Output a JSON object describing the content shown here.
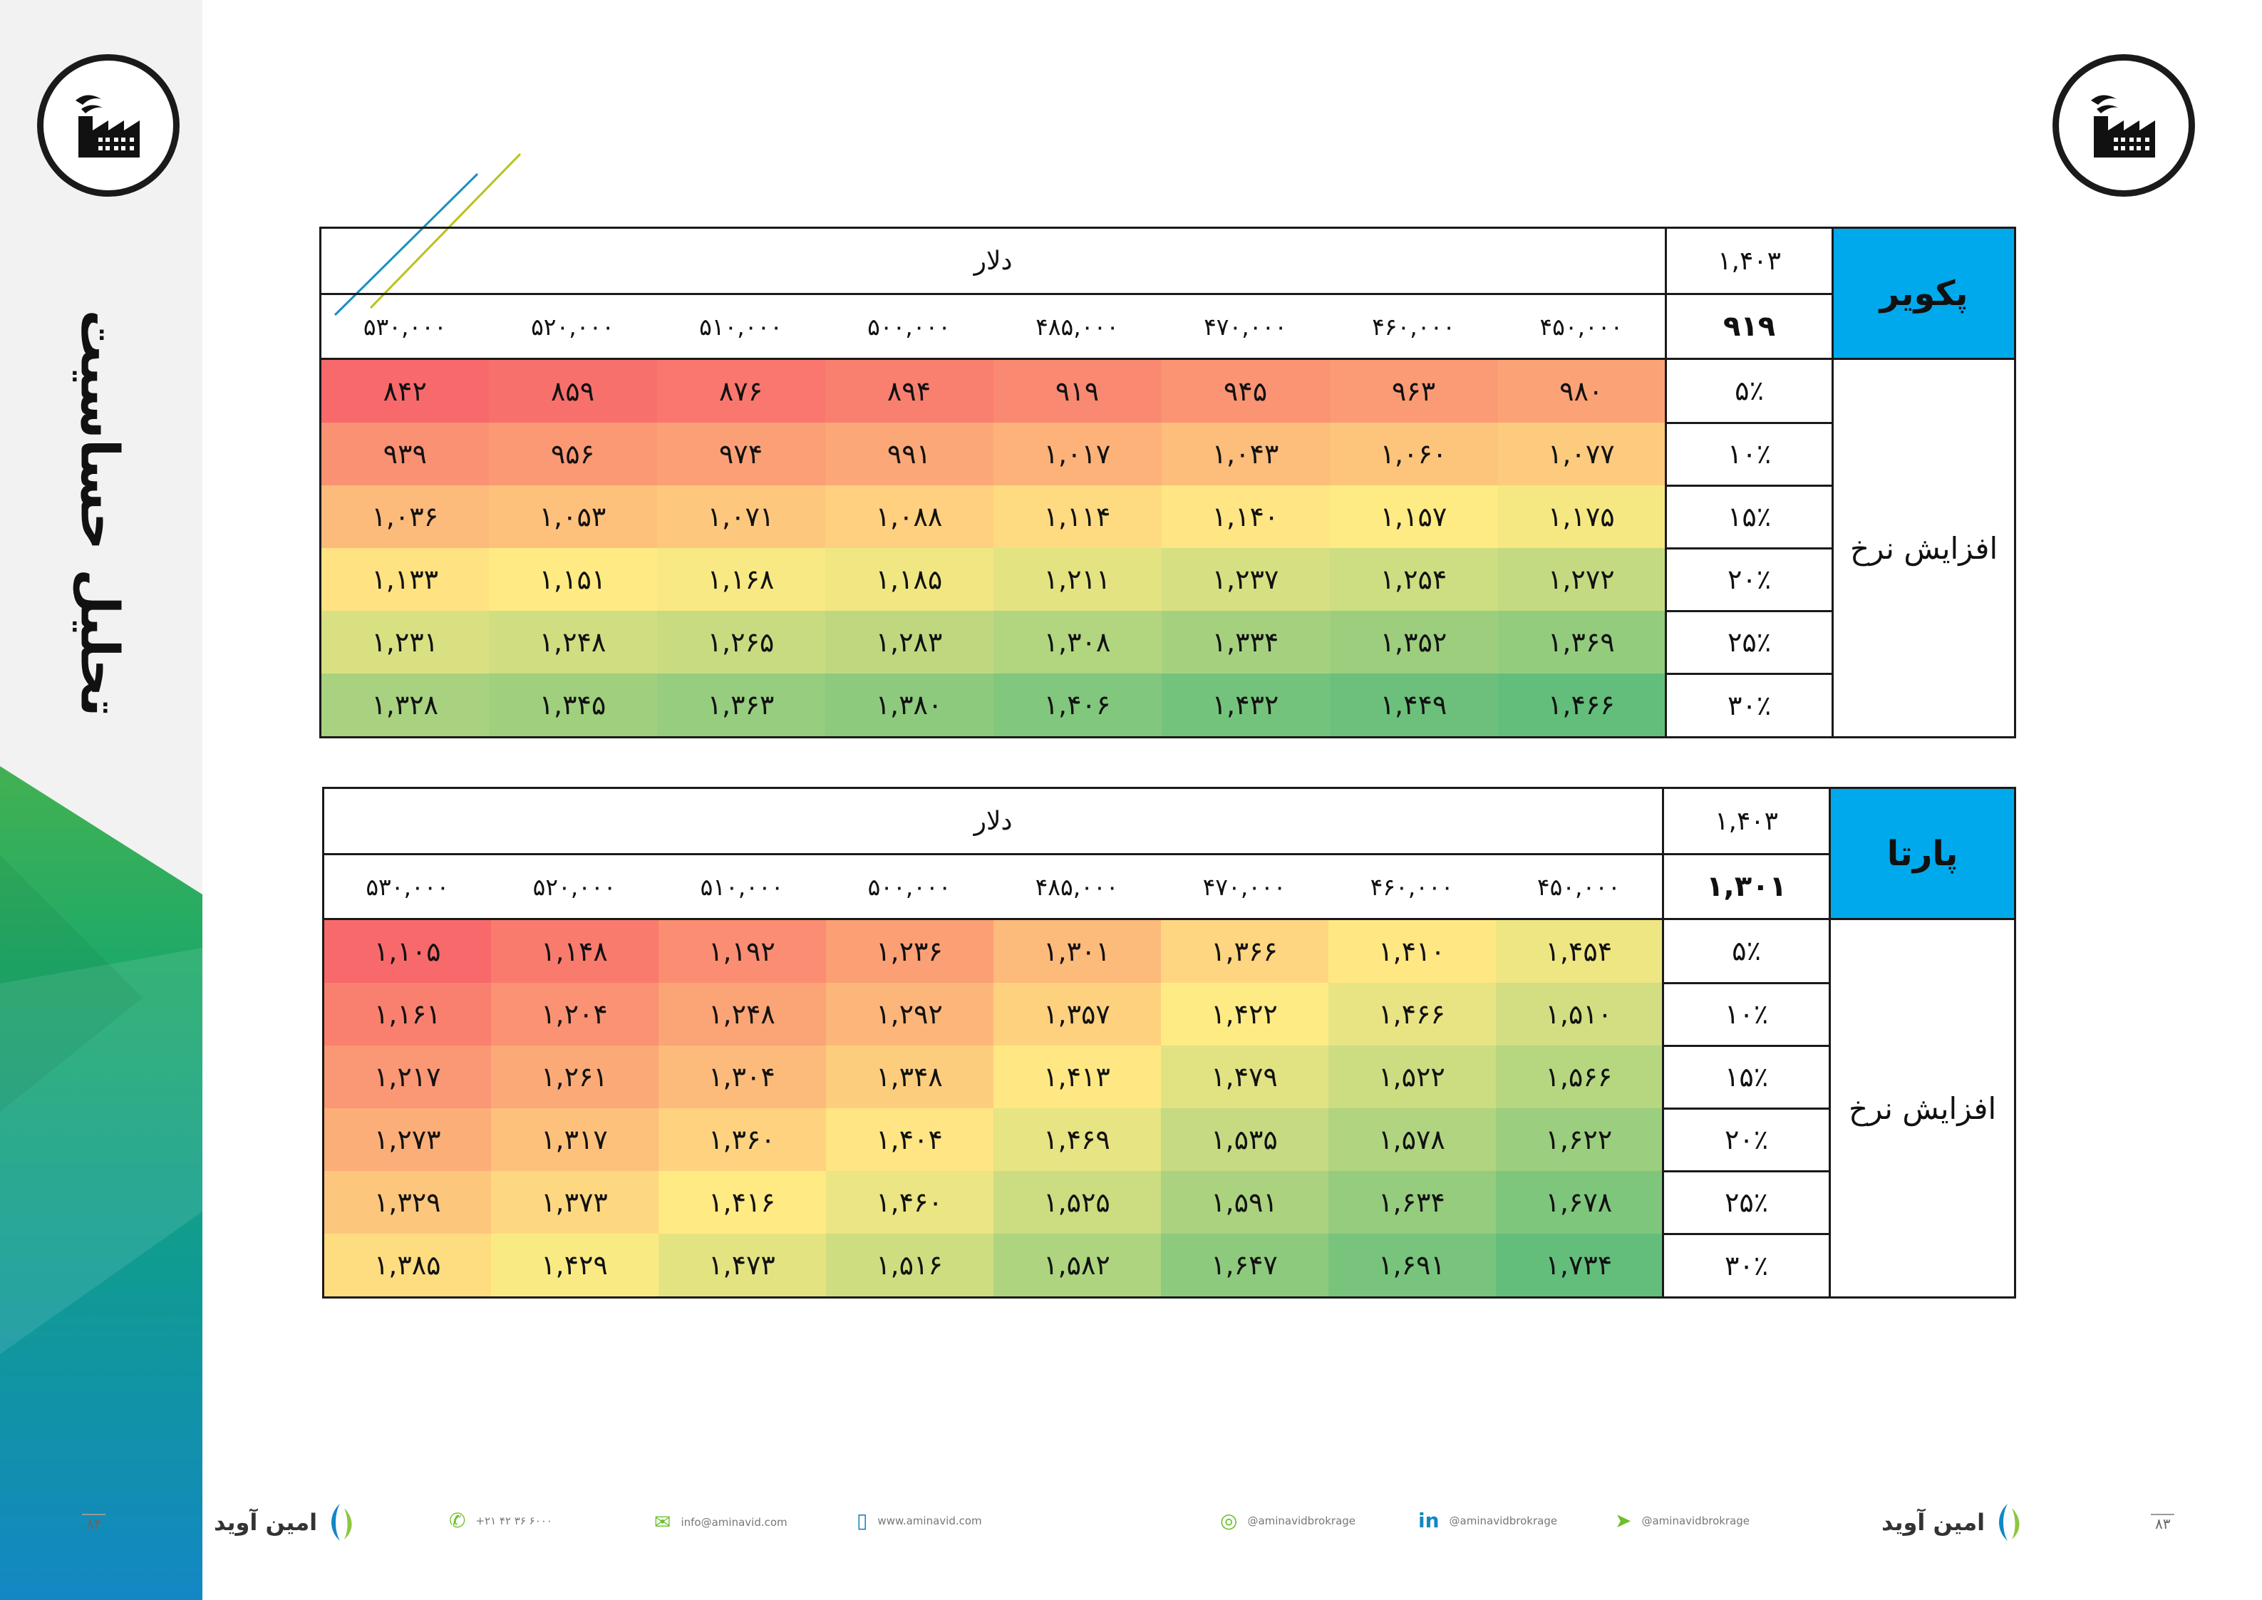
{
  "sidebar": {
    "title": "تحلیل حساسیت",
    "page_number": "۸۴"
  },
  "right_page_number": "۸۳",
  "logo_icon": "factory-icon",
  "tables": [
    {
      "company": "پکویر",
      "unit_header": "دلار",
      "base_rate": "۱,۴۰۳",
      "base_price": "۹۱۹",
      "row_label": "افزایش نرخ",
      "columns": [
        "۵۳۰,۰۰۰",
        "۵۲۰,۰۰۰",
        "۵۱۰,۰۰۰",
        "۵۰۰,۰۰۰",
        "۴۸۵,۰۰۰",
        "۴۷۰,۰۰۰",
        "۴۶۰,۰۰۰",
        "۴۵۰,۰۰۰"
      ],
      "rows": [
        {
          "pct": "۵٪",
          "values": [
            "۸۴۲",
            "۸۵۹",
            "۸۷۶",
            "۸۹۴",
            "۹۱۹",
            "۹۴۵",
            "۹۶۳",
            "۹۸۰"
          ]
        },
        {
          "pct": "۱۰٪",
          "values": [
            "۹۳۹",
            "۹۵۶",
            "۹۷۴",
            "۹۹۱",
            "۱,۰۱۷",
            "۱,۰۴۳",
            "۱,۰۶۰",
            "۱,۰۷۷"
          ]
        },
        {
          "pct": "۱۵٪",
          "values": [
            "۱,۰۳۶",
            "۱,۰۵۳",
            "۱,۰۷۱",
            "۱,۰۸۸",
            "۱,۱۱۴",
            "۱,۱۴۰",
            "۱,۱۵۷",
            "۱,۱۷۵"
          ]
        },
        {
          "pct": "۲۰٪",
          "values": [
            "۱,۱۳۳",
            "۱,۱۵۱",
            "۱,۱۶۸",
            "۱,۱۸۵",
            "۱,۲۱۱",
            "۱,۲۳۷",
            "۱,۲۵۴",
            "۱,۲۷۲"
          ]
        },
        {
          "pct": "۲۵٪",
          "values": [
            "۱,۲۳۱",
            "۱,۲۴۸",
            "۱,۲۶۵",
            "۱,۲۸۳",
            "۱,۳۰۸",
            "۱,۳۳۴",
            "۱,۳۵۲",
            "۱,۳۶۹"
          ]
        },
        {
          "pct": "۳۰٪",
          "values": [
            "۱,۳۲۸",
            "۱,۳۴۵",
            "۱,۳۶۳",
            "۱,۳۸۰",
            "۱,۴۰۶",
            "۱,۴۳۲",
            "۱,۴۴۹",
            "۱,۴۶۶"
          ]
        }
      ]
    },
    {
      "company": "پارتا",
      "unit_header": "دلار",
      "base_rate": "۱,۴۰۳",
      "base_price": "۱,۳۰۱",
      "row_label": "افزایش نرخ",
      "columns": [
        "۵۳۰,۰۰۰",
        "۵۲۰,۰۰۰",
        "۵۱۰,۰۰۰",
        "۵۰۰,۰۰۰",
        "۴۸۵,۰۰۰",
        "۴۷۰,۰۰۰",
        "۴۶۰,۰۰۰",
        "۴۵۰,۰۰۰"
      ],
      "rows": [
        {
          "pct": "۵٪",
          "values": [
            "۱,۱۰۵",
            "۱,۱۴۸",
            "۱,۱۹۲",
            "۱,۲۳۶",
            "۱,۳۰۱",
            "۱,۳۶۶",
            "۱,۴۱۰",
            "۱,۴۵۴"
          ]
        },
        {
          "pct": "۱۰٪",
          "values": [
            "۱,۱۶۱",
            "۱,۲۰۴",
            "۱,۲۴۸",
            "۱,۲۹۲",
            "۱,۳۵۷",
            "۱,۴۲۲",
            "۱,۴۶۶",
            "۱,۵۱۰"
          ]
        },
        {
          "pct": "۱۵٪",
          "values": [
            "۱,۲۱۷",
            "۱,۲۶۱",
            "۱,۳۰۴",
            "۱,۳۴۸",
            "۱,۴۱۳",
            "۱,۴۷۹",
            "۱,۵۲۲",
            "۱,۵۶۶"
          ]
        },
        {
          "pct": "۲۰٪",
          "values": [
            "۱,۲۷۳",
            "۱,۳۱۷",
            "۱,۳۶۰",
            "۱,۴۰۴",
            "۱,۴۶۹",
            "۱,۵۳۵",
            "۱,۵۷۸",
            "۱,۶۲۲"
          ]
        },
        {
          "pct": "۲۵٪",
          "values": [
            "۱,۳۲۹",
            "۱,۳۷۳",
            "۱,۴۱۶",
            "۱,۴۶۰",
            "۱,۵۲۵",
            "۱,۵۹۱",
            "۱,۶۳۴",
            "۱,۶۷۸"
          ]
        },
        {
          "pct": "۳۰٪",
          "values": [
            "۱,۳۸۵",
            "۱,۴۲۹",
            "۱,۴۷۳",
            "۱,۵۱۶",
            "۱,۵۸۲",
            "۱,۶۴۷",
            "۱,۶۹۱",
            "۱,۷۳۴"
          ]
        }
      ]
    }
  ],
  "colors": {
    "header_blue": "#00a9ec",
    "heat_low": "#f8696b",
    "heat_mid": "#ffeb84",
    "heat_high": "#63be7b"
  },
  "footer": {
    "brand": "امین آوید",
    "phone": "+۲۱ ۴۲ ۳۶ ۶۰۰۰",
    "email": "info@aminavid.com",
    "website": "www.aminavid.com",
    "instagram": "@aminavidbrokrage",
    "linkedin": "@aminavidbrokrage",
    "telegram": "@aminavidbrokrage"
  }
}
